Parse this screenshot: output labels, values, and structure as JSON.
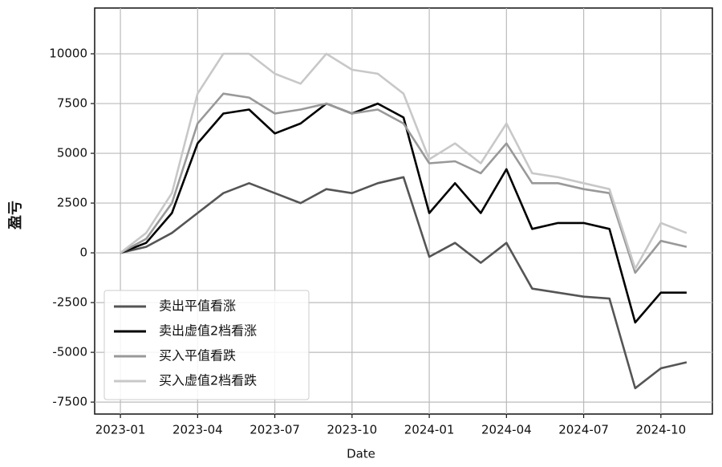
{
  "chart_data": {
    "type": "line",
    "xlabel": "Date",
    "ylabel": "盈亏",
    "x": [
      "2023-01",
      "2023-02",
      "2023-03",
      "2023-04",
      "2023-05",
      "2023-06",
      "2023-07",
      "2023-08",
      "2023-09",
      "2023-10",
      "2023-11",
      "2023-12",
      "2024-01",
      "2024-02",
      "2024-03",
      "2024-04",
      "2024-05",
      "2024-06",
      "2024-07",
      "2024-08",
      "2024-09",
      "2024-10",
      "2024-11"
    ],
    "xlim": [
      "2022-12",
      "2024-12"
    ],
    "xticks": [
      "2023-01",
      "2023-04",
      "2023-07",
      "2023-10",
      "2024-01",
      "2024-04",
      "2024-07",
      "2024-10"
    ],
    "ylim": [
      -8100,
      12300
    ],
    "yticks": [
      -7500,
      -5000,
      -2500,
      0,
      2500,
      5000,
      7500,
      10000
    ],
    "grid": true,
    "legend": "lower left",
    "series": [
      {
        "name": "卖出平值看涨",
        "color": "#555555",
        "values": [
          0,
          300,
          1000,
          2000,
          3000,
          3500,
          3000,
          2500,
          3200,
          3000,
          3500,
          3800,
          -200,
          500,
          -500,
          500,
          -1800,
          -2000,
          -2200,
          -2300,
          -6800,
          -5800,
          -5500
        ]
      },
      {
        "name": "卖出虚值2档看涨",
        "color": "#000000",
        "values": [
          0,
          500,
          2000,
          5500,
          7000,
          7200,
          6000,
          6500,
          7500,
          7000,
          7500,
          6800,
          2000,
          3500,
          2000,
          4200,
          1200,
          1500,
          1500,
          1200,
          -3500,
          -2000,
          -2000
        ]
      },
      {
        "name": "买入平值看跌",
        "color": "#999999",
        "values": [
          0,
          700,
          2500,
          6500,
          8000,
          7800,
          7000,
          7200,
          7500,
          7000,
          7200,
          6500,
          4500,
          4600,
          4000,
          5500,
          3500,
          3500,
          3200,
          3000,
          -1000,
          600,
          300
        ]
      },
      {
        "name": "买入虚值2档看跌",
        "color": "#c8c8c8",
        "values": [
          0,
          1000,
          3000,
          8000,
          10000,
          10000,
          9000,
          8500,
          10000,
          9200,
          9000,
          8000,
          4700,
          5500,
          4500,
          6500,
          4000,
          3800,
          3500,
          3200,
          -800,
          1500,
          1000
        ]
      }
    ]
  }
}
